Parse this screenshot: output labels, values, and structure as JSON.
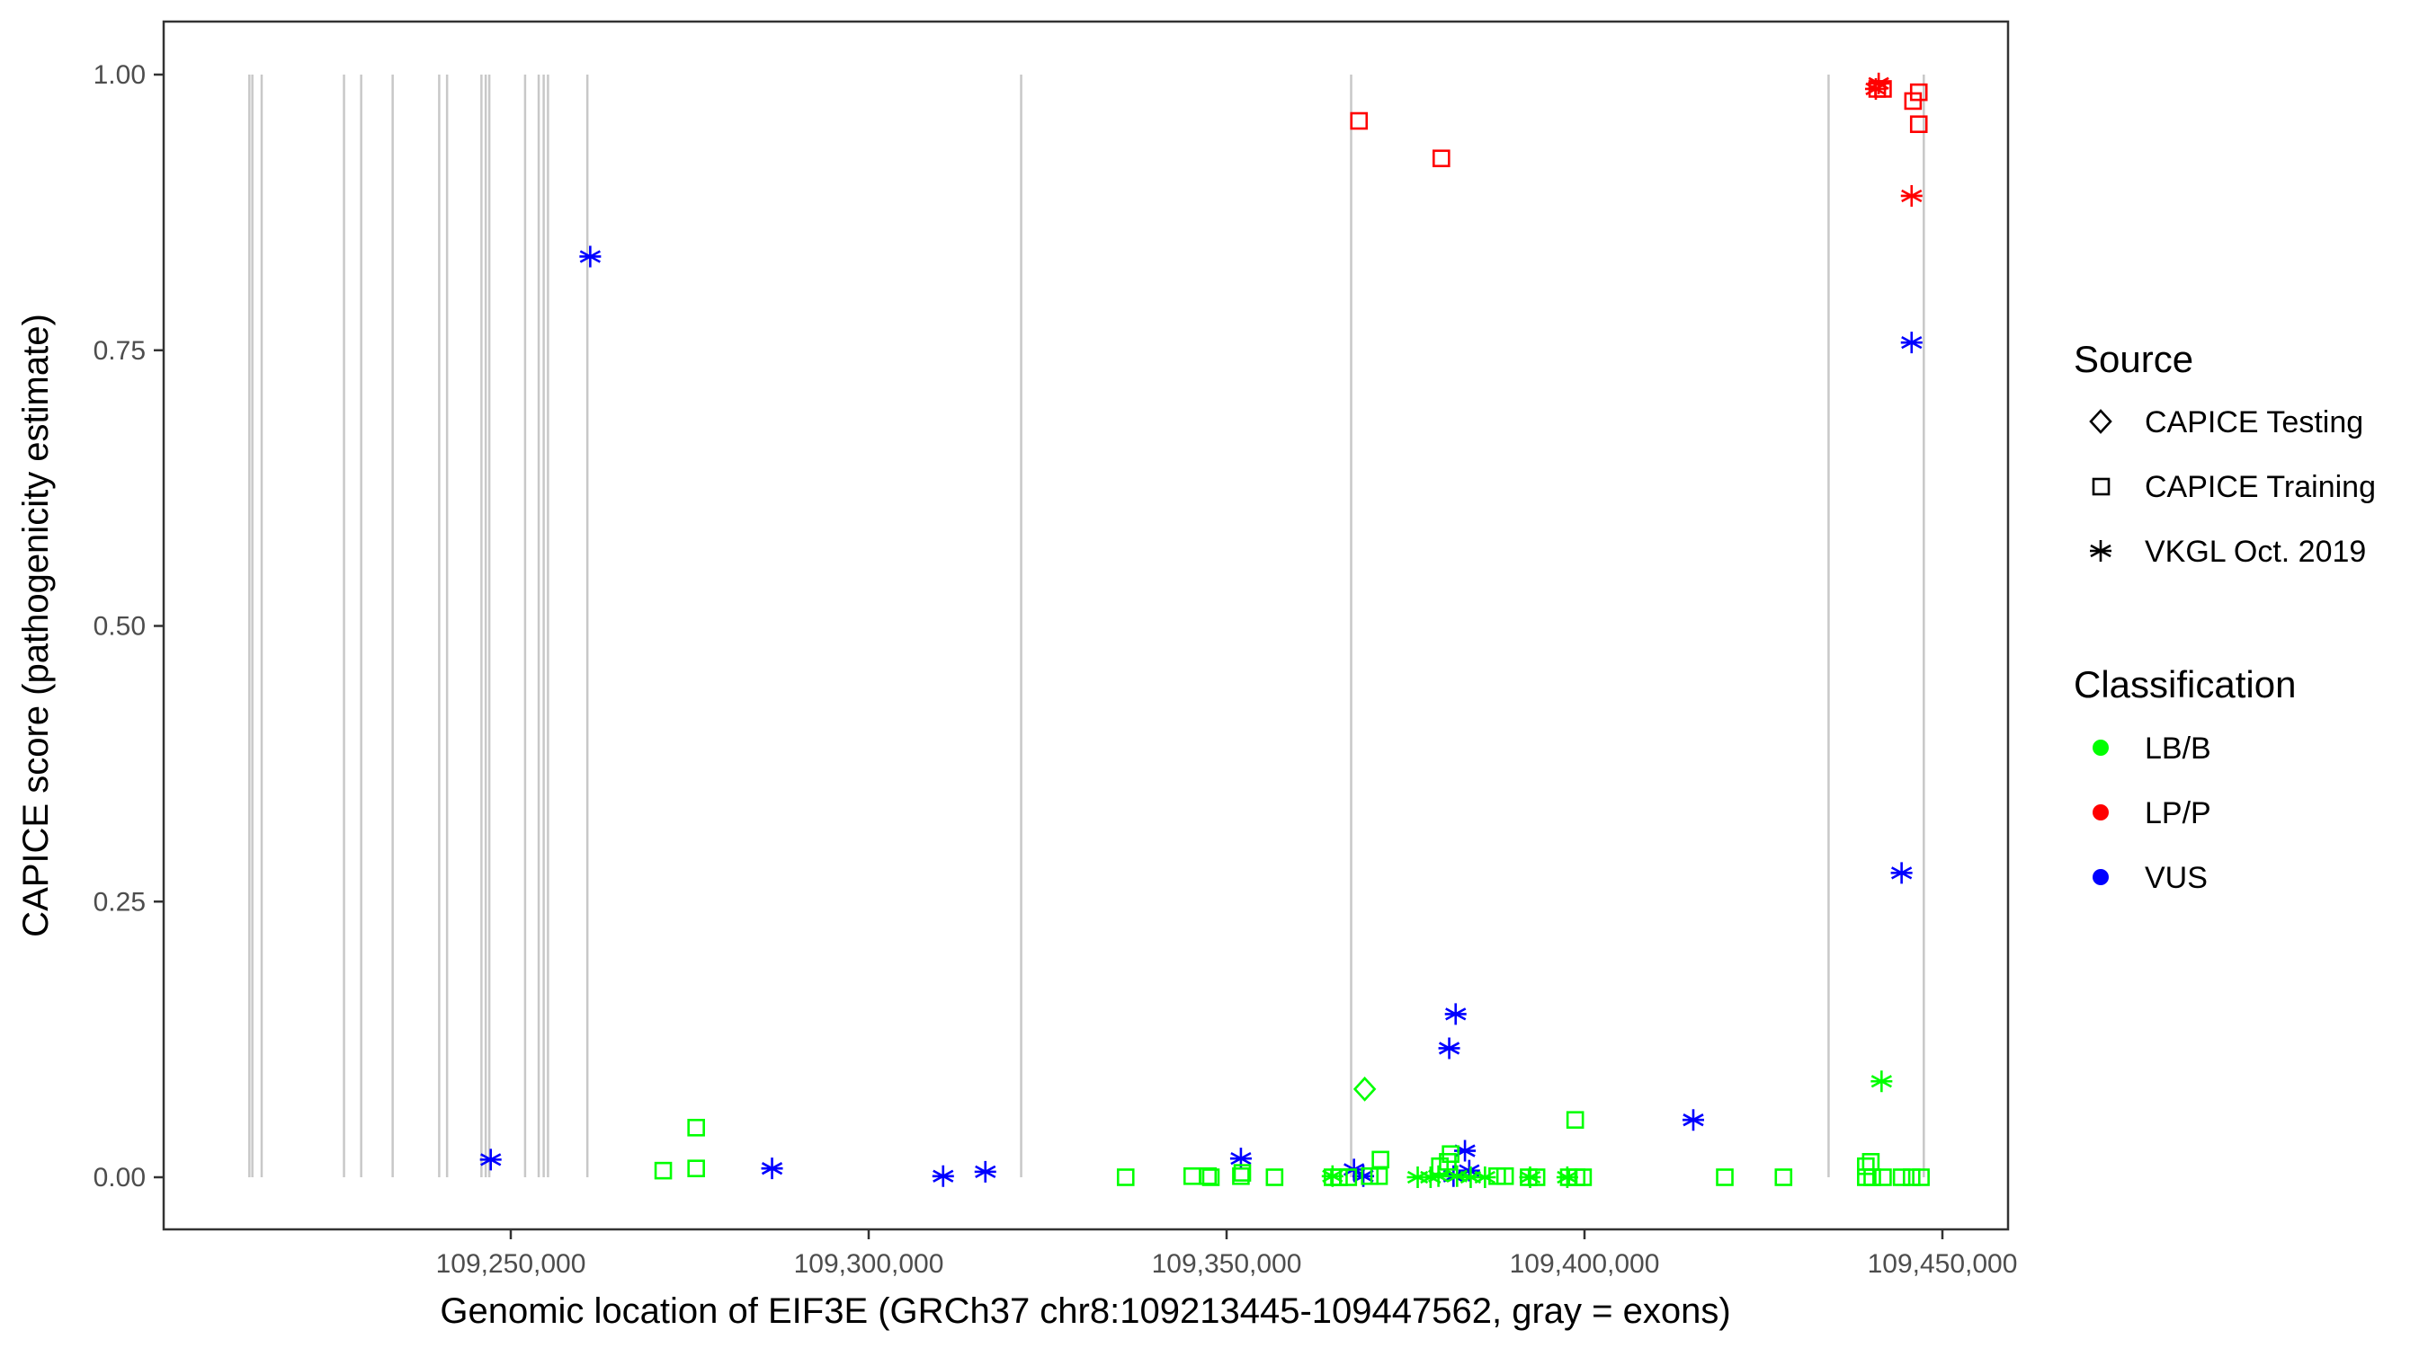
{
  "chart_data": {
    "type": "scatter",
    "xlabel": "Genomic location of EIF3E (GRCh37 chr8:109213445-109447562, gray = exons)",
    "ylabel": "CAPICE score (pathogenicity estimate)",
    "xlim": [
      109206000,
      109455000
    ],
    "ylim": [
      -0.045,
      1.05
    ],
    "x_ticks": [
      109250000,
      109300000,
      109350000,
      109400000,
      109450000
    ],
    "x_tick_labels": [
      "109,250,000",
      "109,300,000",
      "109,350,000",
      "109,400,000",
      "109,450,000"
    ],
    "y_ticks": [
      0,
      0.25,
      0.5,
      0.75,
      1.0
    ],
    "y_tick_labels": [
      "0.00",
      "0.25",
      "0.50",
      "0.75",
      "1.00"
    ],
    "grid": false,
    "exon_color": "#c8c8c8",
    "exons": [
      109213480,
      109213900,
      109215200,
      109226700,
      109229100,
      109233500,
      109240000,
      109241100,
      109245900,
      109246500,
      109247000,
      109252000,
      109253900,
      109254600,
      109255200,
      109260700,
      109321300,
      109367400,
      109434100,
      109447400
    ],
    "legend_placement": "right",
    "source_legend": {
      "title": "Source",
      "entries": [
        {
          "label": "CAPICE Testing",
          "shape": "diamond"
        },
        {
          "label": "CAPICE Training",
          "shape": "square"
        },
        {
          "label": "VKGL Oct. 2019",
          "shape": "asterisk"
        }
      ]
    },
    "classification_legend": {
      "title": "Classification",
      "entries": [
        {
          "label": "LB/B",
          "color": "#00ff00"
        },
        {
          "label": "LP/P",
          "color": "#ff0000"
        },
        {
          "label": "VUS",
          "color": "#0000ff"
        }
      ]
    },
    "points": [
      {
        "x": 109247200,
        "y": 0.016,
        "source": "VKGL Oct. 2019",
        "class": "VUS"
      },
      {
        "x": 109261100,
        "y": 0.835,
        "source": "VKGL Oct. 2019",
        "class": "VUS"
      },
      {
        "x": 109286500,
        "y": 0.008,
        "source": "VKGL Oct. 2019",
        "class": "VUS"
      },
      {
        "x": 109310400,
        "y": 0.001,
        "source": "VKGL Oct. 2019",
        "class": "VUS"
      },
      {
        "x": 109316300,
        "y": 0.005,
        "source": "VKGL Oct. 2019",
        "class": "VUS"
      },
      {
        "x": 109352000,
        "y": 0.017,
        "source": "VKGL Oct. 2019",
        "class": "VUS"
      },
      {
        "x": 109367800,
        "y": 0.007,
        "source": "VKGL Oct. 2019",
        "class": "VUS"
      },
      {
        "x": 109369100,
        "y": 0.001,
        "source": "VKGL Oct. 2019",
        "class": "VUS"
      },
      {
        "x": 109381100,
        "y": 0.117,
        "source": "VKGL Oct. 2019",
        "class": "VUS"
      },
      {
        "x": 109382000,
        "y": 0.148,
        "source": "VKGL Oct. 2019",
        "class": "VUS"
      },
      {
        "x": 109383300,
        "y": 0.024,
        "source": "VKGL Oct. 2019",
        "class": "VUS"
      },
      {
        "x": 109381700,
        "y": 0.001,
        "source": "VKGL Oct. 2019",
        "class": "VUS"
      },
      {
        "x": 109383900,
        "y": 0.006,
        "source": "VKGL Oct. 2019",
        "class": "VUS"
      },
      {
        "x": 109415200,
        "y": 0.052,
        "source": "VKGL Oct. 2019",
        "class": "VUS"
      },
      {
        "x": 109444300,
        "y": 0.276,
        "source": "VKGL Oct. 2019",
        "class": "VUS"
      },
      {
        "x": 109445700,
        "y": 0.757,
        "source": "VKGL Oct. 2019",
        "class": "VUS"
      },
      {
        "x": 109441100,
        "y": 0.992,
        "source": "VKGL Oct. 2019",
        "class": "LP/P"
      },
      {
        "x": 109440700,
        "y": 0.987,
        "source": "VKGL Oct. 2019",
        "class": "LP/P"
      },
      {
        "x": 109445700,
        "y": 0.89,
        "source": "VKGL Oct. 2019",
        "class": "LP/P"
      },
      {
        "x": 109368500,
        "y": 0.958,
        "source": "CAPICE Training",
        "class": "LP/P"
      },
      {
        "x": 109380000,
        "y": 0.924,
        "source": "CAPICE Training",
        "class": "LP/P"
      },
      {
        "x": 109440900,
        "y": 0.987,
        "source": "CAPICE Training",
        "class": "LP/P"
      },
      {
        "x": 109441700,
        "y": 0.987,
        "source": "CAPICE Training",
        "class": "LP/P"
      },
      {
        "x": 109445900,
        "y": 0.976,
        "source": "CAPICE Training",
        "class": "LP/P"
      },
      {
        "x": 109446700,
        "y": 0.984,
        "source": "CAPICE Training",
        "class": "LP/P"
      },
      {
        "x": 109446700,
        "y": 0.955,
        "source": "CAPICE Training",
        "class": "LP/P"
      },
      {
        "x": 109369300,
        "y": 0.08,
        "source": "CAPICE Testing",
        "class": "LB/B"
      },
      {
        "x": 109441500,
        "y": 0.087,
        "source": "VKGL Oct. 2019",
        "class": "LB/B"
      },
      {
        "x": 109364800,
        "y": 0.001,
        "source": "VKGL Oct. 2019",
        "class": "LB/B"
      },
      {
        "x": 109376700,
        "y": 0.0,
        "source": "VKGL Oct. 2019",
        "class": "LB/B"
      },
      {
        "x": 109378500,
        "y": 0.0,
        "source": "VKGL Oct. 2019",
        "class": "LB/B"
      },
      {
        "x": 109379600,
        "y": 0.001,
        "source": "VKGL Oct. 2019",
        "class": "LB/B"
      },
      {
        "x": 109382200,
        "y": 0.001,
        "source": "VKGL Oct. 2019",
        "class": "LB/B"
      },
      {
        "x": 109384100,
        "y": 0.0,
        "source": "VKGL Oct. 2019",
        "class": "LB/B"
      },
      {
        "x": 109386100,
        "y": 0.0,
        "source": "VKGL Oct. 2019",
        "class": "LB/B"
      },
      {
        "x": 109392400,
        "y": 0.0,
        "source": "VKGL Oct. 2019",
        "class": "LB/B"
      },
      {
        "x": 109397600,
        "y": 0.0,
        "source": "VKGL Oct. 2019",
        "class": "LB/B"
      },
      {
        "x": 109271300,
        "y": 0.006,
        "source": "CAPICE Training",
        "class": "LB/B"
      },
      {
        "x": 109275900,
        "y": 0.045,
        "source": "CAPICE Training",
        "class": "LB/B"
      },
      {
        "x": 109275900,
        "y": 0.008,
        "source": "CAPICE Training",
        "class": "LB/B"
      },
      {
        "x": 109335900,
        "y": 0.0,
        "source": "CAPICE Training",
        "class": "LB/B"
      },
      {
        "x": 109345200,
        "y": 0.001,
        "source": "CAPICE Training",
        "class": "LB/B"
      },
      {
        "x": 109347400,
        "y": 0.001,
        "source": "CAPICE Training",
        "class": "LB/B"
      },
      {
        "x": 109347800,
        "y": 0.0,
        "source": "CAPICE Training",
        "class": "LB/B"
      },
      {
        "x": 109352000,
        "y": 0.001,
        "source": "CAPICE Training",
        "class": "LB/B"
      },
      {
        "x": 109352200,
        "y": 0.004,
        "source": "CAPICE Training",
        "class": "LB/B"
      },
      {
        "x": 109356700,
        "y": 0.0,
        "source": "CAPICE Training",
        "class": "LB/B"
      },
      {
        "x": 109364800,
        "y": 0.0,
        "source": "CAPICE Training",
        "class": "LB/B"
      },
      {
        "x": 109365700,
        "y": 0.0,
        "source": "CAPICE Training",
        "class": "LB/B"
      },
      {
        "x": 109367000,
        "y": 0.0,
        "source": "CAPICE Training",
        "class": "LB/B"
      },
      {
        "x": 109370000,
        "y": 0.001,
        "source": "CAPICE Training",
        "class": "LB/B"
      },
      {
        "x": 109371300,
        "y": 0.001,
        "source": "CAPICE Training",
        "class": "LB/B"
      },
      {
        "x": 109371500,
        "y": 0.016,
        "source": "CAPICE Training",
        "class": "LB/B"
      },
      {
        "x": 109379800,
        "y": 0.01,
        "source": "CAPICE Training",
        "class": "LB/B"
      },
      {
        "x": 109380900,
        "y": 0.014,
        "source": "CAPICE Training",
        "class": "LB/B"
      },
      {
        "x": 109381300,
        "y": 0.021,
        "source": "CAPICE Training",
        "class": "LB/B"
      },
      {
        "x": 109387800,
        "y": 0.001,
        "source": "CAPICE Training",
        "class": "LB/B"
      },
      {
        "x": 109388900,
        "y": 0.001,
        "source": "CAPICE Training",
        "class": "LB/B"
      },
      {
        "x": 109392200,
        "y": 0.0,
        "source": "CAPICE Training",
        "class": "LB/B"
      },
      {
        "x": 109393300,
        "y": 0.0,
        "source": "CAPICE Training",
        "class": "LB/B"
      },
      {
        "x": 109397800,
        "y": 0.0,
        "source": "CAPICE Training",
        "class": "LB/B"
      },
      {
        "x": 109398900,
        "y": 0.0,
        "source": "CAPICE Training",
        "class": "LB/B"
      },
      {
        "x": 109399800,
        "y": 0.0,
        "source": "CAPICE Training",
        "class": "LB/B"
      },
      {
        "x": 109398700,
        "y": 0.052,
        "source": "CAPICE Training",
        "class": "LB/B"
      },
      {
        "x": 109419600,
        "y": 0.0,
        "source": "CAPICE Training",
        "class": "LB/B"
      },
      {
        "x": 109427800,
        "y": 0.0,
        "source": "CAPICE Training",
        "class": "LB/B"
      },
      {
        "x": 109439300,
        "y": 0.01,
        "source": "CAPICE Training",
        "class": "LB/B"
      },
      {
        "x": 109440000,
        "y": 0.014,
        "source": "CAPICE Training",
        "class": "LB/B"
      },
      {
        "x": 109439300,
        "y": 0.0,
        "source": "CAPICE Training",
        "class": "LB/B"
      },
      {
        "x": 109440200,
        "y": 0.0,
        "source": "CAPICE Training",
        "class": "LB/B"
      },
      {
        "x": 109441700,
        "y": 0.0,
        "source": "CAPICE Training",
        "class": "LB/B"
      },
      {
        "x": 109444300,
        "y": 0.0,
        "source": "CAPICE Training",
        "class": "LB/B"
      },
      {
        "x": 109445700,
        "y": 0.0,
        "source": "CAPICE Training",
        "class": "LB/B"
      },
      {
        "x": 109447000,
        "y": 0.0,
        "source": "CAPICE Training",
        "class": "LB/B"
      }
    ]
  }
}
